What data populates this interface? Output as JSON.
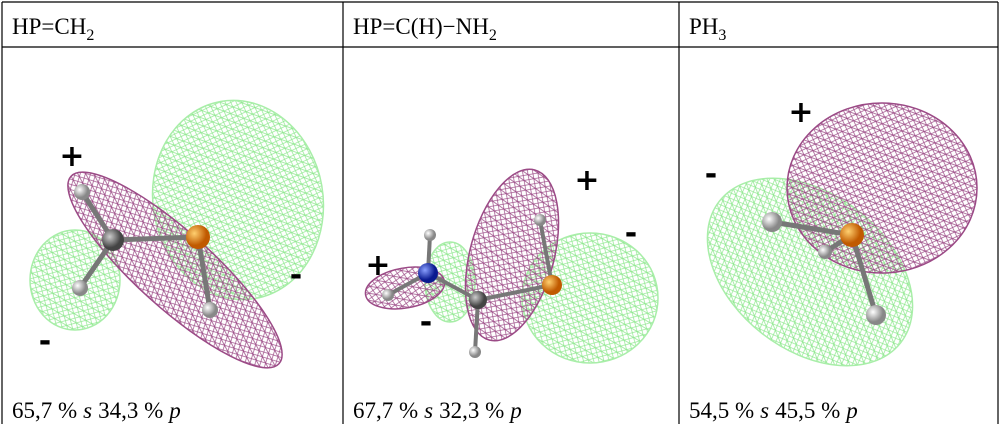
{
  "table": {
    "headers": [
      {
        "main": "HP=CH",
        "sub": "2"
      },
      {
        "main": "HP=C(H)−NH",
        "sub": "2"
      },
      {
        "main": "PH",
        "sub": "3"
      }
    ],
    "captions": [
      [
        "65,7 %",
        "s",
        "34,3 %",
        "p"
      ],
      [
        "67,7 %",
        "s",
        "32,3 %",
        "p"
      ],
      [
        "54,5 %",
        "s",
        "45,5 %",
        "p"
      ]
    ],
    "signs": [
      [
        "+",
        "-",
        "-"
      ],
      [
        "+",
        "-",
        "+",
        "-"
      ],
      [
        "+",
        "-"
      ]
    ]
  }
}
